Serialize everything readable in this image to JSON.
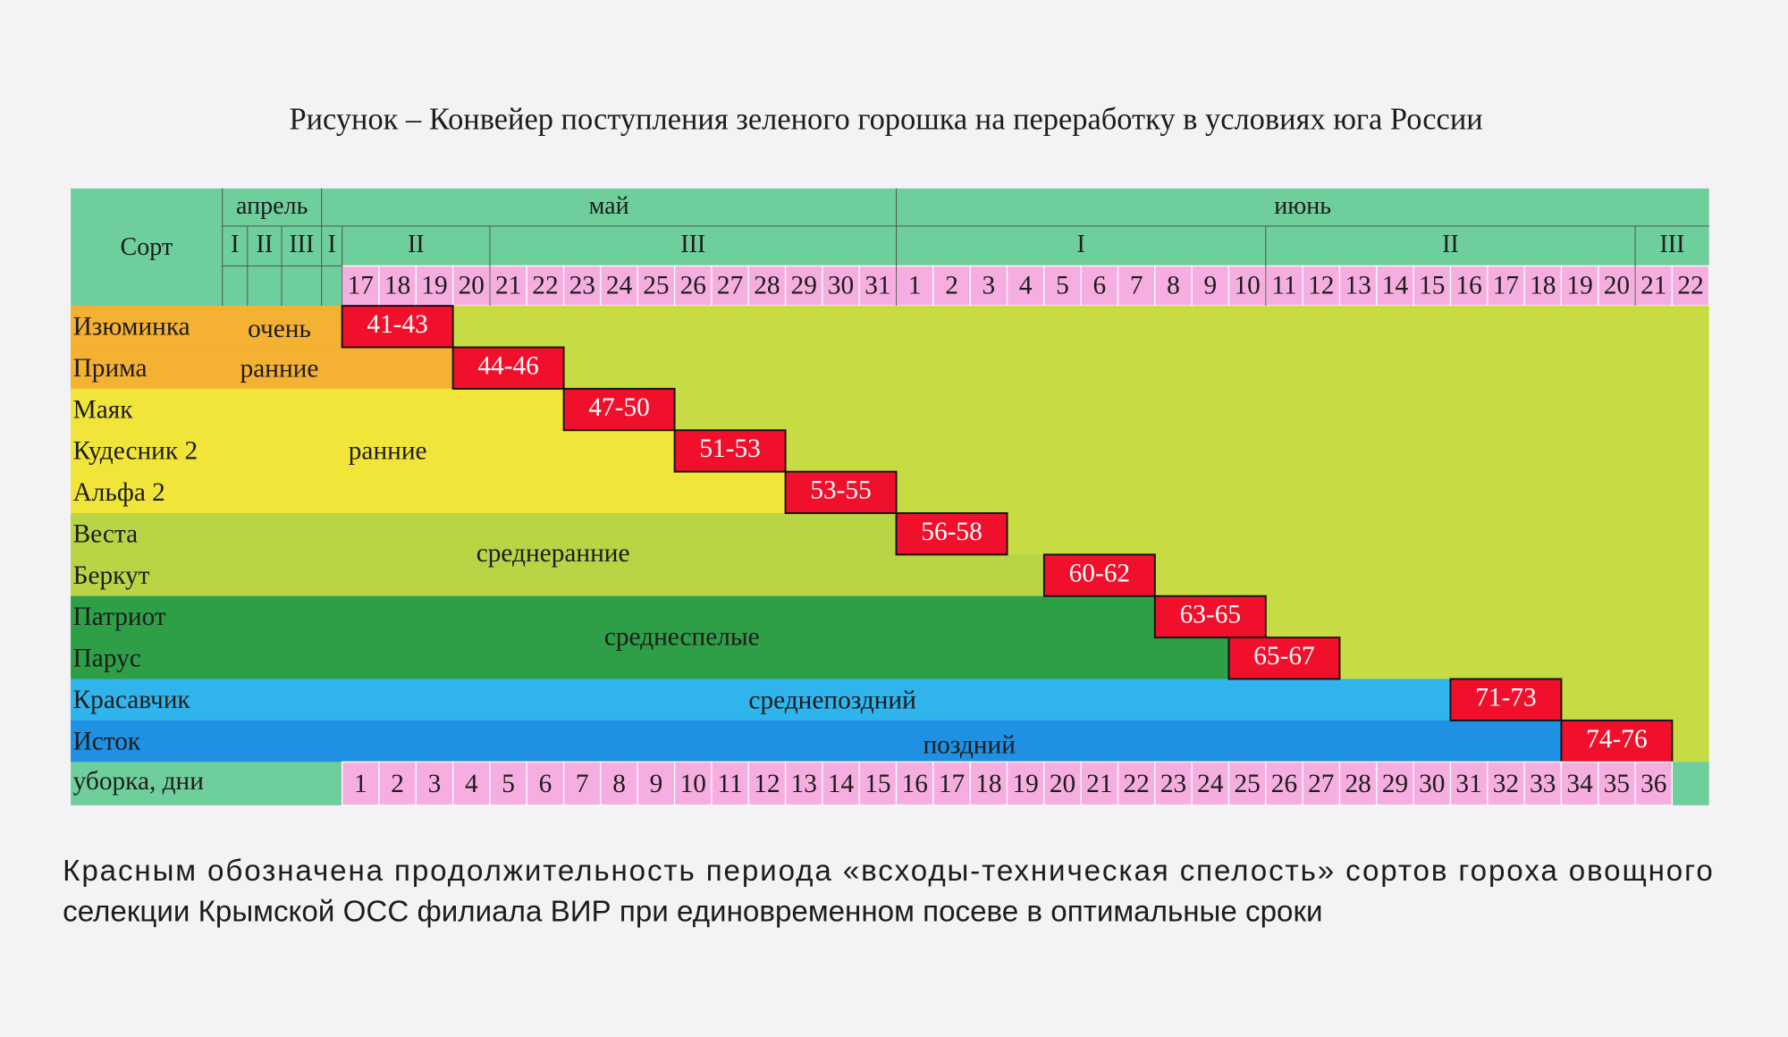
{
  "title": "Рисунок – Конвейер поступления зеленого горошка на переработку в условиях юга России",
  "table": {
    "header": {
      "variety": "Сорт",
      "months": [
        "апрель",
        "май",
        "июнь"
      ],
      "decades": [
        "I",
        "II",
        "III",
        "I",
        "II",
        "III",
        "I",
        "II",
        "III"
      ],
      "days": [
        17,
        18,
        19,
        20,
        21,
        22,
        23,
        24,
        25,
        26,
        27,
        28,
        29,
        30,
        31,
        1,
        2,
        3,
        4,
        5,
        6,
        7,
        8,
        9,
        10,
        11,
        12,
        13,
        14,
        15,
        16,
        17,
        18,
        19,
        20,
        21,
        22
      ]
    },
    "groups": [
      {
        "label": [
          "очень",
          "ранние"
        ],
        "rows": [
          {
            "variety": "Изюминка",
            "period": "41-43"
          },
          {
            "variety": "Прима",
            "period": "44-46"
          }
        ]
      },
      {
        "label": [
          "ранние"
        ],
        "rows": [
          {
            "variety": "Маяк",
            "period": "47-50"
          },
          {
            "variety": "Кудесник 2",
            "period": "51-53"
          },
          {
            "variety": "Альфа 2",
            "period": "53-55"
          }
        ]
      },
      {
        "label": [
          "среднеранние"
        ],
        "rows": [
          {
            "variety": "Веста",
            "period": "56-58"
          },
          {
            "variety": "Беркут",
            "period": "60-62"
          }
        ]
      },
      {
        "label": [
          "среднеспелые"
        ],
        "rows": [
          {
            "variety": "Патриот",
            "period": "63-65"
          },
          {
            "variety": "Парус",
            "period": "65-67"
          }
        ]
      },
      {
        "label": [
          "среднепоздний"
        ],
        "rows": [
          {
            "variety": "Красавчик",
            "period": "71-73"
          }
        ]
      },
      {
        "label": [
          "поздний"
        ],
        "rows": [
          {
            "variety": "Исток",
            "period": "74-76"
          }
        ]
      }
    ],
    "harvest": {
      "label": "уборка, дни",
      "days": [
        1,
        2,
        3,
        4,
        5,
        6,
        7,
        8,
        9,
        10,
        11,
        12,
        13,
        14,
        15,
        16,
        17,
        18,
        19,
        20,
        21,
        22,
        23,
        24,
        25,
        26,
        27,
        28,
        29,
        30,
        31,
        32,
        33,
        34,
        35,
        36
      ]
    }
  },
  "footnote": [
    "Красным обозначена продолжительность периода «всходы-техническая спелость» сортов гороха овощного",
    "селекции Крымской ОСС филиала ВИР при единовременном посеве в оптимальные сроки"
  ]
}
